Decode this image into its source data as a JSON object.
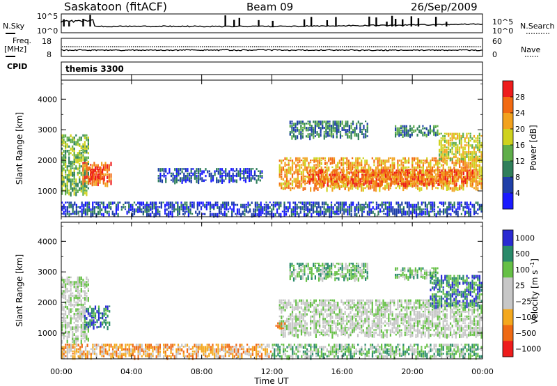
{
  "header": {
    "station": "Saskatoon (fitACF)",
    "beam": "Beam 09",
    "date": "26/Sep/2009"
  },
  "top_panel": {
    "left_label": "N.Sky",
    "right_label": "N.Search",
    "left_ticks": [
      "10^5",
      "10^0"
    ],
    "right_ticks": [
      "10^5",
      "10^0"
    ]
  },
  "freq_panel": {
    "left_label_1": "Freq.",
    "left_label_2": "[MHz]",
    "right_label": "Nave",
    "left_ticks": [
      "18",
      "8"
    ],
    "right_ticks": [
      "60",
      "0"
    ]
  },
  "cpid": {
    "label": "CPID",
    "value": "themis 3300"
  },
  "x_axis": {
    "label": "Time UT",
    "ticks": [
      "00:00",
      "04:00",
      "08:00",
      "12:00",
      "16:00",
      "20:00",
      "00:00"
    ],
    "range_hours": [
      0,
      24
    ]
  },
  "colors": {
    "power": [
      "#1a1aff",
      "#1f3fa8",
      "#2f7f5a",
      "#5fae4a",
      "#cfd21e",
      "#f2a21e",
      "#f26a12",
      "#ee1c1c"
    ],
    "velocity": [
      "#2a2ad2",
      "#2a8a6a",
      "#66c046",
      "#c7c7c7",
      "#c7c7c7",
      "#f4a81e",
      "#ef6a14",
      "#ee1c1c"
    ]
  },
  "chart_data": [
    {
      "type": "heatmap",
      "name": "power",
      "ylabel": "Slant Range [km]",
      "ylim": [
        180,
        4600
      ],
      "yticks": [
        "1000",
        "2000",
        "3000",
        "4000"
      ],
      "ytick_values": [
        1000,
        2000,
        3000,
        4000
      ],
      "colorbar": {
        "label": "Power [dB]",
        "ticks": [
          "4",
          "8",
          "12",
          "16",
          "20",
          "24",
          "28"
        ],
        "tick_values": [
          4,
          8,
          12,
          16,
          20,
          24,
          28
        ],
        "range": [
          0,
          32
        ]
      },
      "regions": [
        {
          "t0": 0.0,
          "t1": 1.6,
          "r0": 900,
          "r1": 2850,
          "level": 3
        },
        {
          "t0": 1.2,
          "t1": 2.9,
          "r0": 1200,
          "r1": 1950,
          "level": 6
        },
        {
          "t0": 1.6,
          "t1": 2.5,
          "r0": 1350,
          "r1": 1800,
          "level": 7
        },
        {
          "t0": 0.0,
          "t1": 24.0,
          "r0": 200,
          "r1": 650,
          "level": 1
        },
        {
          "t0": 12.4,
          "t1": 24.0,
          "r0": 1050,
          "r1": 2100,
          "level": 5
        },
        {
          "t0": 14.0,
          "t1": 23.5,
          "r0": 1200,
          "r1": 1700,
          "level": 6
        },
        {
          "t0": 13.0,
          "t1": 17.5,
          "r0": 2750,
          "r1": 3300,
          "level": 2
        },
        {
          "t0": 19.0,
          "t1": 21.5,
          "r0": 2800,
          "r1": 3150,
          "level": 2
        },
        {
          "t0": 21.5,
          "t1": 24.0,
          "r0": 2000,
          "r1": 2900,
          "level": 4
        },
        {
          "t0": 5.5,
          "t1": 11.5,
          "r0": 1300,
          "r1": 1750,
          "level": 1
        }
      ]
    },
    {
      "type": "heatmap",
      "name": "velocity",
      "ylabel": "Slant Range [km]",
      "ylim": [
        180,
        4600
      ],
      "yticks": [
        "1000",
        "2000",
        "3000",
        "4000"
      ],
      "ytick_values": [
        1000,
        2000,
        3000,
        4000
      ],
      "colorbar": {
        "label": "Velocity [m s^-1]",
        "ticks": [
          "1000",
          "500",
          "100",
          "25",
          "−25",
          "−100",
          "−500",
          "−1000"
        ]
      },
      "regions": [
        {
          "t0": 0.0,
          "t1": 1.6,
          "r0": 700,
          "r1": 2850,
          "level": 3
        },
        {
          "t0": 1.3,
          "t1": 2.8,
          "r0": 1150,
          "r1": 1900,
          "level": 1
        },
        {
          "t0": 0.0,
          "t1": 12.0,
          "r0": 200,
          "r1": 650,
          "level": 5
        },
        {
          "t0": 12.0,
          "t1": 24.0,
          "r0": 200,
          "r1": 650,
          "level": 2
        },
        {
          "t0": 12.4,
          "t1": 24.0,
          "r0": 900,
          "r1": 2100,
          "level": 3
        },
        {
          "t0": 13.0,
          "t1": 17.5,
          "r0": 2750,
          "r1": 3300,
          "level": 2
        },
        {
          "t0": 19.0,
          "t1": 21.5,
          "r0": 2800,
          "r1": 3150,
          "level": 2
        },
        {
          "t0": 21.0,
          "t1": 24.0,
          "r0": 1850,
          "r1": 2900,
          "level": 1
        },
        {
          "t0": 12.2,
          "t1": 12.8,
          "r0": 1100,
          "r1": 1350,
          "level": 5
        }
      ]
    }
  ]
}
